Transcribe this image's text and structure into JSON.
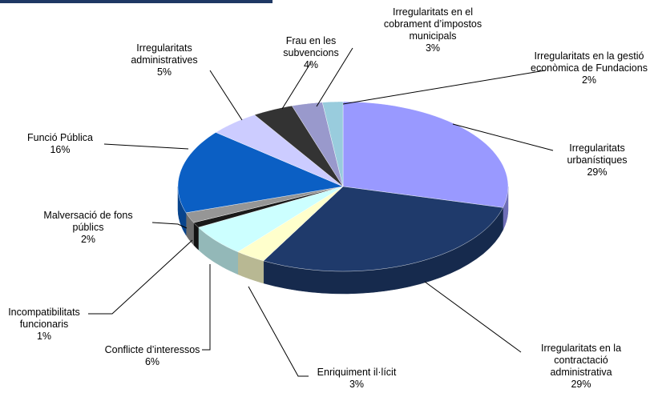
{
  "chart_data": {
    "type": "pie",
    "categories": [
      "Irregularitats urbanístiques",
      "Irregularitats en la contractació administrativa",
      "Enriquiment il·lícit",
      "Conflicte d’interessos",
      "Incompatibilitats funcionaris",
      "Malversació de fons públics",
      "Funció Pública",
      "Irregularitats administratives",
      "Frau en les subvencions",
      "Irregularitats en el cobrament d’impostos municipals",
      "Irregularitats en la gestió econòmica de Fundacions"
    ],
    "values": [
      29,
      29,
      3,
      6,
      1,
      2,
      16,
      5,
      4,
      3,
      2
    ],
    "value_labels": [
      "29%",
      "29%",
      "3%",
      "6%",
      "1%",
      "2%",
      "16%",
      "5%",
      "4%",
      "3%",
      "2%"
    ],
    "colors": [
      "#9999ff",
      "#1f3a6b",
      "#ffffcc",
      "#ccffff",
      "#1a1a1a",
      "#969696",
      "#0b5fc4",
      "#ccccff",
      "#333333",
      "#9999cc",
      "#99ccdd"
    ]
  }
}
